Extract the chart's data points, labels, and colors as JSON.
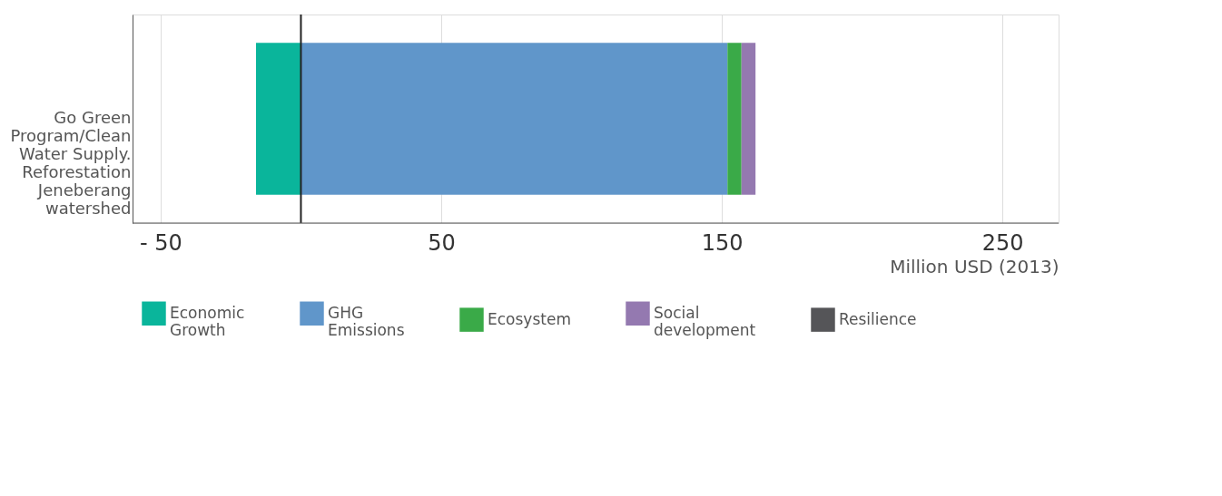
{
  "chart_data": {
    "type": "bar",
    "orientation": "horizontal",
    "stacked": true,
    "categories": [
      "Go Green Program/Clean Water Supply. Reforestation Jeneberang watershed"
    ],
    "series": [
      {
        "name": "Economic Growth",
        "color": "#0ab59b",
        "values": [
          -16
        ]
      },
      {
        "name": "GHG Emissions",
        "color": "#6096ca",
        "values": [
          152
        ]
      },
      {
        "name": "Ecosystem",
        "color": "#3aaa48",
        "values": [
          5
        ]
      },
      {
        "name": "Social development",
        "color": "#9479b0",
        "values": [
          5
        ]
      },
      {
        "name": "Resilience",
        "color": "#555558",
        "values": [
          0
        ]
      }
    ],
    "xlim": [
      -60,
      270
    ],
    "xticks": [
      {
        "value": -50,
        "label": "- 50"
      },
      50,
      150,
      250
    ],
    "xlabel": "Million USD (2013)",
    "grid": "x",
    "legend": "bottom",
    "ref_lines": [
      {
        "axis": "x",
        "value": 0,
        "color": "#222222"
      }
    ]
  }
}
